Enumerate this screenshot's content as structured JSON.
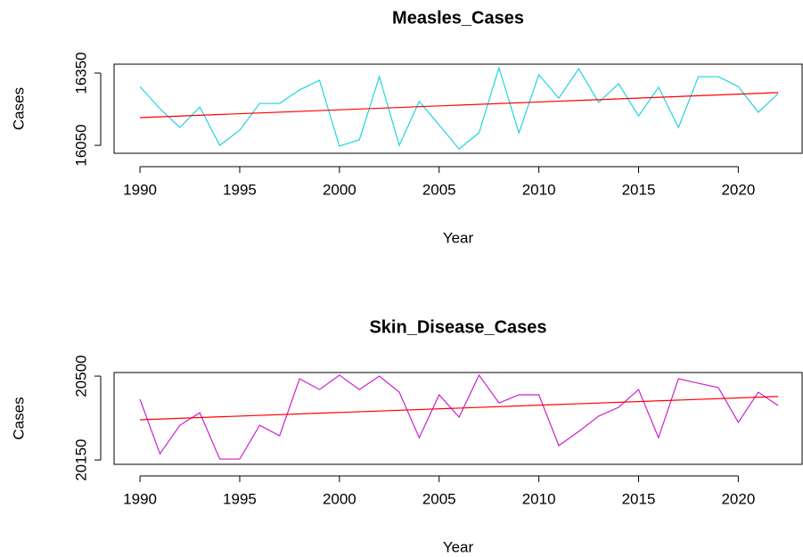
{
  "chart_data": [
    {
      "type": "line",
      "title": "Measles_Cases",
      "x_label": "Year",
      "y_label": "Cases",
      "x": [
        1990,
        1991,
        1992,
        1993,
        1994,
        1995,
        1996,
        1997,
        1998,
        1999,
        2000,
        2001,
        2002,
        2003,
        2004,
        2005,
        2006,
        2007,
        2008,
        2009,
        2010,
        2011,
        2012,
        2013,
        2014,
        2015,
        2016,
        2017,
        2018,
        2019,
        2020,
        2021,
        2022
      ],
      "series": [
        {
          "name": "Measles_Cases",
          "color": "#22d3dd",
          "values": [
            16294,
            16202,
            16124,
            16209,
            16050,
            16113,
            16224,
            16224,
            16280,
            16320,
            16047,
            16073,
            16335,
            16050,
            16232,
            16135,
            16035,
            16102,
            16372,
            16102,
            16343,
            16246,
            16368,
            16228,
            16306,
            16172,
            16291,
            16124,
            16335,
            16335,
            16294,
            16187,
            16265
          ]
        }
      ],
      "trend_line": {
        "x": [
          1990,
          2022
        ],
        "values": [
          16165,
          16269
        ],
        "color": "#ff0000"
      },
      "xlim": [
        1988.7,
        2023.2
      ],
      "ylim": [
        16017,
        16387
      ],
      "xticks": [
        1990,
        1995,
        2000,
        2005,
        2010,
        2015,
        2020
      ],
      "yticks": [
        16050,
        16350
      ]
    },
    {
      "type": "line",
      "title": "Skin_Disease_Cases",
      "x_label": "Year",
      "y_label": "Cases",
      "x": [
        1990,
        1991,
        1992,
        1993,
        1994,
        1995,
        1996,
        1997,
        1998,
        1999,
        2000,
        2001,
        2002,
        2003,
        2004,
        2005,
        2006,
        2007,
        2008,
        2009,
        2010,
        2011,
        2012,
        2013,
        2014,
        2015,
        2016,
        2017,
        2018,
        2019,
        2020,
        2021,
        2022
      ],
      "series": [
        {
          "name": "Skin_Disease_Cases",
          "color": "#cc22cc",
          "values": [
            20403,
            20176,
            20295,
            20347,
            20154,
            20154,
            20295,
            20251,
            20489,
            20444,
            20504,
            20444,
            20500,
            20433,
            20243,
            20422,
            20329,
            20504,
            20388,
            20422,
            20422,
            20210,
            20269,
            20333,
            20370,
            20444,
            20243,
            20489,
            20470,
            20452,
            20307,
            20433,
            20377
          ]
        }
      ],
      "trend_line": {
        "x": [
          1990,
          2022
        ],
        "values": [
          20318,
          20415
        ],
        "color": "#ff0000"
      },
      "xlim": [
        1988.7,
        2023.2
      ],
      "ylim": [
        20132,
        20515
      ],
      "xticks": [
        1990,
        1995,
        2000,
        2005,
        2010,
        2015,
        2020
      ],
      "yticks": [
        20150,
        20500
      ]
    }
  ]
}
